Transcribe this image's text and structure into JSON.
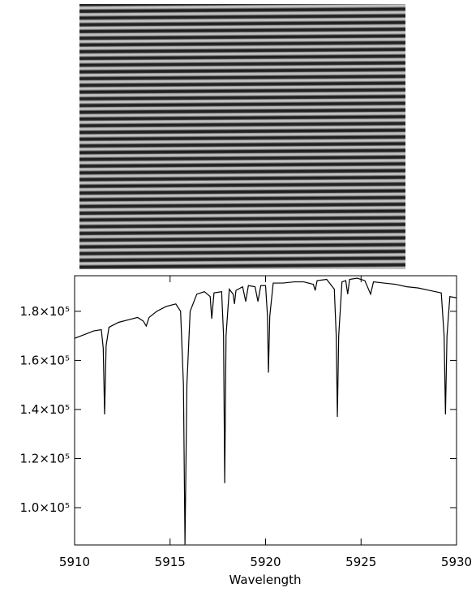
{
  "chart_data": {
    "type": "line",
    "x_label": "Wavelength",
    "x": [
      5910.0,
      5910.5,
      5911.0,
      5911.4,
      5911.5,
      5911.57,
      5911.65,
      5911.8,
      5912.3,
      5912.8,
      5913.3,
      5913.6,
      5913.75,
      5913.9,
      5914.3,
      5914.8,
      5915.3,
      5915.55,
      5915.7,
      5915.78,
      5915.88,
      5916.05,
      5916.4,
      5916.8,
      5917.1,
      5917.18,
      5917.3,
      5917.7,
      5917.8,
      5917.86,
      5917.93,
      5918.1,
      5918.3,
      5918.37,
      5918.45,
      5918.8,
      5918.96,
      5919.1,
      5919.45,
      5919.6,
      5919.75,
      5920.0,
      5920.1,
      5920.15,
      5920.22,
      5920.4,
      5920.9,
      5921.5,
      5922.0,
      5922.5,
      5922.6,
      5922.7,
      5923.2,
      5923.6,
      5923.7,
      5923.76,
      5923.83,
      5924.0,
      5924.2,
      5924.3,
      5924.4,
      5924.8,
      5925.2,
      5925.5,
      5925.65,
      5926.2,
      5926.8,
      5927.4,
      5928.0,
      5928.6,
      5929.2,
      5929.35,
      5929.42,
      5929.5,
      5929.65,
      5930.0
    ],
    "series": [
      {
        "color": "#000000",
        "values": [
          169000,
          170500,
          172000,
          172500,
          165000,
          138000,
          166000,
          173500,
          175500,
          176500,
          177500,
          176000,
          174000,
          177500,
          180000,
          182000,
          183000,
          180000,
          150000,
          85000,
          150000,
          180000,
          187000,
          188000,
          186000,
          177000,
          187500,
          188000,
          170000,
          110000,
          170000,
          189000,
          187000,
          183000,
          188500,
          190000,
          184000,
          190500,
          190000,
          184000,
          190500,
          190500,
          178000,
          155000,
          178000,
          191500,
          191500,
          192000,
          192000,
          191000,
          188500,
          192500,
          193000,
          189000,
          170000,
          137000,
          170000,
          192000,
          192500,
          187000,
          193000,
          193500,
          192500,
          187000,
          192000,
          191500,
          191000,
          190000,
          189500,
          188500,
          187500,
          170000,
          138000,
          170000,
          186000,
          185500
        ]
      }
    ],
    "xlim": [
      5910,
      5930
    ],
    "xticks": [
      5910,
      5915,
      5920,
      5925,
      5930
    ],
    "ylim": [
      84800,
      194500
    ],
    "yticks": [
      {
        "value": 100000,
        "label": "1.0×10⁵"
      },
      {
        "value": 120000,
        "label": "1.2×10⁵"
      },
      {
        "value": 140000,
        "label": "1.4×10⁵"
      },
      {
        "value": 160000,
        "label": "1.6×10⁵"
      },
      {
        "value": 180000,
        "label": "1.8×10⁵"
      }
    ]
  }
}
